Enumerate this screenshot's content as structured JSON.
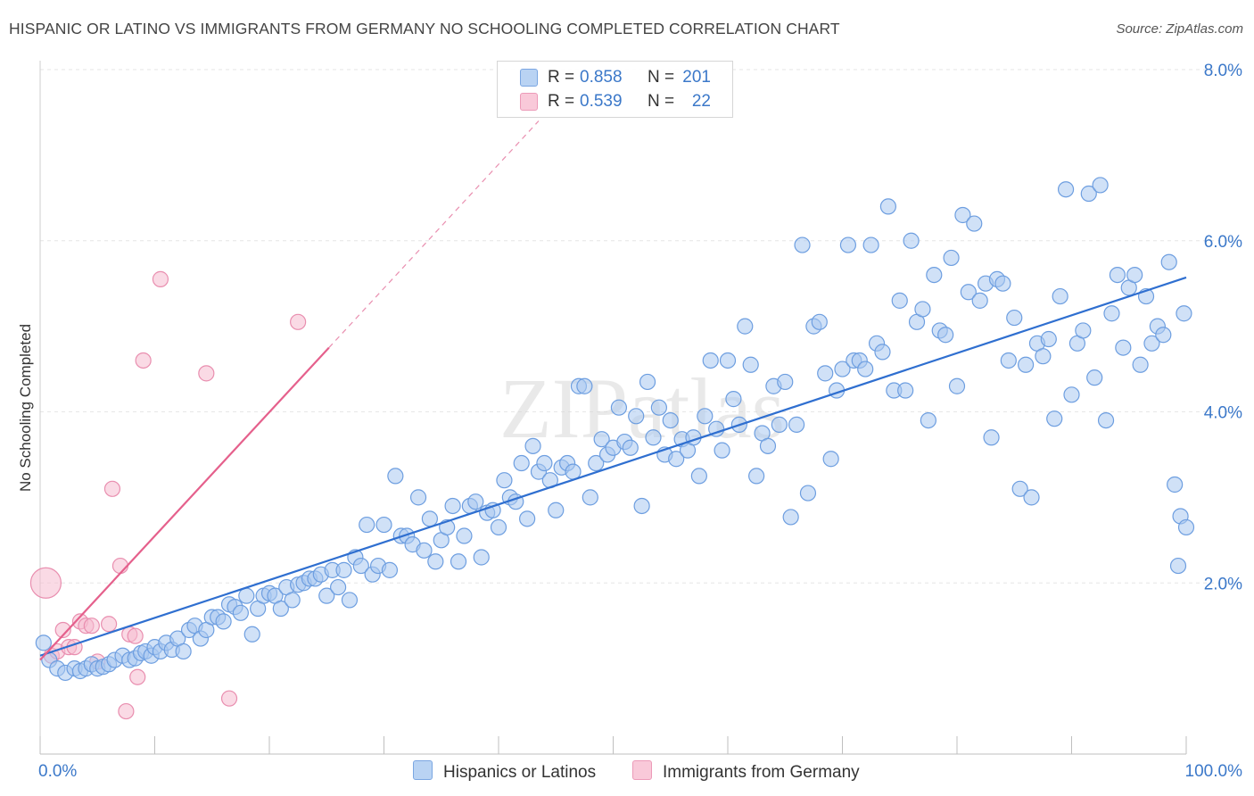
{
  "title": "HISPANIC OR LATINO VS IMMIGRANTS FROM GERMANY NO SCHOOLING COMPLETED CORRELATION CHART",
  "source": "Source: ZipAtlas.com",
  "watermark": "ZIPatlas",
  "colors": {
    "blue_fill": "#a9c8f0",
    "blue_stroke": "#6d9ee0",
    "blue_line": "#2f6fd0",
    "pink_fill": "#f6bcd0",
    "pink_stroke": "#e98eaf",
    "pink_line": "#e5608c",
    "axis_text": "#3b78c9",
    "grid": "#e6e6e6"
  },
  "legend": {
    "rows": [
      {
        "r_label": "R =",
        "r_value": "0.858",
        "n_label": "N =",
        "n_value": "201"
      },
      {
        "r_label": "R =",
        "r_value": "0.539",
        "n_label": "N =",
        "n_value": "22"
      }
    ]
  },
  "bottom_legend": [
    "Hispanics or Latinos",
    "Immigrants from Germany"
  ],
  "chart_data": {
    "type": "scatter",
    "title": "HISPANIC OR LATINO VS IMMIGRANTS FROM GERMANY NO SCHOOLING COMPLETED CORRELATION CHART",
    "xlabel": "",
    "ylabel": "No Schooling Completed",
    "xlim": [
      0,
      100
    ],
    "ylim": [
      0,
      8.0
    ],
    "x_tick_labels": [
      "0.0%",
      "100.0%"
    ],
    "y_ticks": [
      2.0,
      4.0,
      6.0,
      8.0
    ],
    "y_tick_labels": [
      "2.0%",
      "4.0%",
      "6.0%",
      "8.0%"
    ],
    "grid": true,
    "legend_position": "top-center",
    "series": [
      {
        "name": "Hispanics or Latinos",
        "color": "#a9c8f0",
        "trend": {
          "x": [
            0,
            100
          ],
          "y": [
            1.15,
            5.57
          ]
        },
        "points": [
          [
            0.3,
            1.3
          ],
          [
            0.8,
            1.1
          ],
          [
            1.5,
            1.0
          ],
          [
            2.2,
            0.95
          ],
          [
            3.0,
            1.0
          ],
          [
            3.5,
            0.97
          ],
          [
            4.0,
            1.0
          ],
          [
            4.5,
            1.05
          ],
          [
            5.0,
            1.0
          ],
          [
            5.5,
            1.02
          ],
          [
            6.0,
            1.05
          ],
          [
            6.5,
            1.1
          ],
          [
            7.2,
            1.15
          ],
          [
            7.8,
            1.1
          ],
          [
            8.3,
            1.12
          ],
          [
            8.8,
            1.18
          ],
          [
            9.2,
            1.2
          ],
          [
            9.7,
            1.15
          ],
          [
            10.0,
            1.25
          ],
          [
            10.5,
            1.2
          ],
          [
            11.0,
            1.3
          ],
          [
            11.5,
            1.22
          ],
          [
            12.0,
            1.35
          ],
          [
            12.5,
            1.2
          ],
          [
            13.0,
            1.45
          ],
          [
            13.5,
            1.5
          ],
          [
            14.0,
            1.35
          ],
          [
            14.5,
            1.45
          ],
          [
            15.0,
            1.6
          ],
          [
            15.5,
            1.6
          ],
          [
            16.0,
            1.55
          ],
          [
            16.5,
            1.75
          ],
          [
            17.0,
            1.72
          ],
          [
            17.5,
            1.65
          ],
          [
            18.0,
            1.85
          ],
          [
            18.5,
            1.4
          ],
          [
            19.0,
            1.7
          ],
          [
            19.5,
            1.85
          ],
          [
            20.0,
            1.88
          ],
          [
            20.5,
            1.85
          ],
          [
            21.0,
            1.7
          ],
          [
            21.5,
            1.95
          ],
          [
            22.0,
            1.8
          ],
          [
            22.5,
            1.98
          ],
          [
            23.0,
            2.0
          ],
          [
            23.5,
            2.05
          ],
          [
            24.0,
            2.05
          ],
          [
            24.5,
            2.1
          ],
          [
            25.0,
            1.85
          ],
          [
            25.5,
            2.15
          ],
          [
            26.0,
            1.95
          ],
          [
            26.5,
            2.15
          ],
          [
            27.0,
            1.8
          ],
          [
            27.5,
            2.3
          ],
          [
            28.0,
            2.2
          ],
          [
            28.5,
            2.68
          ],
          [
            29.0,
            2.1
          ],
          [
            29.5,
            2.2
          ],
          [
            30.0,
            2.68
          ],
          [
            30.5,
            2.15
          ],
          [
            31.0,
            3.25
          ],
          [
            31.5,
            2.55
          ],
          [
            32.0,
            2.55
          ],
          [
            32.5,
            2.45
          ],
          [
            33.0,
            3.0
          ],
          [
            33.5,
            2.38
          ],
          [
            34.0,
            2.75
          ],
          [
            34.5,
            2.25
          ],
          [
            35.0,
            2.5
          ],
          [
            35.5,
            2.65
          ],
          [
            36.0,
            2.9
          ],
          [
            36.5,
            2.25
          ],
          [
            37.0,
            2.55
          ],
          [
            37.5,
            2.9
          ],
          [
            38.0,
            2.95
          ],
          [
            38.5,
            2.3
          ],
          [
            39.0,
            2.82
          ],
          [
            39.5,
            2.85
          ],
          [
            40.0,
            2.65
          ],
          [
            40.5,
            3.2
          ],
          [
            41.0,
            3.0
          ],
          [
            41.5,
            2.95
          ],
          [
            42.0,
            3.4
          ],
          [
            42.5,
            2.75
          ],
          [
            43.0,
            3.6
          ],
          [
            43.5,
            3.3
          ],
          [
            44.0,
            3.4
          ],
          [
            44.5,
            3.2
          ],
          [
            45.0,
            2.85
          ],
          [
            45.5,
            3.35
          ],
          [
            46.0,
            3.4
          ],
          [
            46.5,
            3.3
          ],
          [
            47.0,
            4.3
          ],
          [
            47.5,
            4.3
          ],
          [
            48.0,
            3.0
          ],
          [
            48.5,
            3.4
          ],
          [
            49.0,
            3.68
          ],
          [
            49.5,
            3.5
          ],
          [
            50.0,
            3.58
          ],
          [
            50.5,
            4.05
          ],
          [
            51.0,
            3.65
          ],
          [
            51.5,
            3.58
          ],
          [
            52.0,
            3.95
          ],
          [
            52.5,
            2.9
          ],
          [
            53.0,
            4.35
          ],
          [
            53.5,
            3.7
          ],
          [
            54.0,
            4.05
          ],
          [
            54.5,
            3.5
          ],
          [
            55.0,
            3.9
          ],
          [
            55.5,
            3.45
          ],
          [
            56.0,
            3.68
          ],
          [
            56.5,
            3.55
          ],
          [
            57.0,
            3.7
          ],
          [
            57.5,
            3.25
          ],
          [
            58.0,
            3.95
          ],
          [
            58.5,
            4.6
          ],
          [
            59.0,
            3.8
          ],
          [
            59.5,
            3.55
          ],
          [
            60.0,
            4.6
          ],
          [
            60.5,
            4.15
          ],
          [
            61.0,
            3.85
          ],
          [
            61.5,
            5.0
          ],
          [
            62.0,
            4.55
          ],
          [
            62.5,
            3.25
          ],
          [
            63.0,
            3.75
          ],
          [
            63.5,
            3.6
          ],
          [
            64.0,
            4.3
          ],
          [
            64.5,
            3.85
          ],
          [
            65.0,
            4.35
          ],
          [
            65.5,
            2.77
          ],
          [
            66.0,
            3.85
          ],
          [
            66.5,
            5.95
          ],
          [
            67.0,
            3.05
          ],
          [
            67.5,
            5.0
          ],
          [
            68.0,
            5.05
          ],
          [
            68.5,
            4.45
          ],
          [
            69.0,
            3.45
          ],
          [
            69.5,
            4.25
          ],
          [
            70.0,
            4.5
          ],
          [
            70.5,
            5.95
          ],
          [
            71.0,
            4.6
          ],
          [
            71.5,
            4.6
          ],
          [
            72.0,
            4.5
          ],
          [
            72.5,
            5.95
          ],
          [
            73.0,
            4.8
          ],
          [
            73.5,
            4.7
          ],
          [
            74.0,
            6.4
          ],
          [
            74.5,
            4.25
          ],
          [
            75.0,
            5.3
          ],
          [
            75.5,
            4.25
          ],
          [
            76.0,
            6.0
          ],
          [
            76.5,
            5.05
          ],
          [
            77.0,
            5.2
          ],
          [
            77.5,
            3.9
          ],
          [
            78.0,
            5.6
          ],
          [
            78.5,
            4.95
          ],
          [
            79.0,
            4.9
          ],
          [
            79.5,
            5.8
          ],
          [
            80.0,
            4.3
          ],
          [
            80.5,
            6.3
          ],
          [
            81.0,
            5.4
          ],
          [
            81.5,
            6.2
          ],
          [
            82.0,
            5.3
          ],
          [
            82.5,
            5.5
          ],
          [
            83.0,
            3.7
          ],
          [
            83.5,
            5.55
          ],
          [
            84.0,
            5.5
          ],
          [
            84.5,
            4.6
          ],
          [
            85.0,
            5.1
          ],
          [
            85.5,
            3.1
          ],
          [
            86.0,
            4.55
          ],
          [
            86.5,
            3.0
          ],
          [
            87.0,
            4.8
          ],
          [
            87.5,
            4.65
          ],
          [
            88.0,
            4.85
          ],
          [
            88.5,
            3.92
          ],
          [
            89.0,
            5.35
          ],
          [
            89.5,
            6.6
          ],
          [
            90.0,
            4.2
          ],
          [
            90.5,
            4.8
          ],
          [
            91.0,
            4.95
          ],
          [
            91.5,
            6.55
          ],
          [
            92.0,
            4.4
          ],
          [
            92.5,
            6.65
          ],
          [
            93.0,
            3.9
          ],
          [
            93.5,
            5.15
          ],
          [
            94.0,
            5.6
          ],
          [
            94.5,
            4.75
          ],
          [
            95.0,
            5.45
          ],
          [
            95.5,
            5.6
          ],
          [
            96.0,
            4.55
          ],
          [
            96.5,
            5.35
          ],
          [
            97.0,
            4.8
          ],
          [
            97.5,
            5.0
          ],
          [
            98.0,
            4.9
          ],
          [
            98.5,
            5.75
          ],
          [
            99.0,
            3.15
          ],
          [
            99.5,
            2.78
          ],
          [
            100.0,
            2.65
          ],
          [
            99.8,
            5.15
          ],
          [
            99.3,
            2.2
          ]
        ]
      },
      {
        "name": "Immigrants from Germany",
        "color": "#f6bcd0",
        "trend": {
          "x": [
            0,
            25.2
          ],
          "y": [
            1.1,
            4.75
          ],
          "dashed_to": {
            "x": 43.5,
            "y": 7.4
          }
        },
        "points": [
          [
            0.5,
            2.0
          ],
          [
            1.0,
            1.15
          ],
          [
            1.5,
            1.2
          ],
          [
            2.0,
            1.45
          ],
          [
            2.5,
            1.25
          ],
          [
            3.0,
            1.25
          ],
          [
            3.5,
            1.55
          ],
          [
            4.0,
            1.5
          ],
          [
            4.5,
            1.5
          ],
          [
            5.0,
            1.08
          ],
          [
            6.0,
            1.52
          ],
          [
            6.3,
            3.1
          ],
          [
            7.0,
            2.2
          ],
          [
            7.5,
            0.5
          ],
          [
            7.8,
            1.4
          ],
          [
            8.3,
            1.38
          ],
          [
            8.5,
            0.9
          ],
          [
            9.0,
            4.6
          ],
          [
            10.5,
            5.55
          ],
          [
            14.5,
            4.45
          ],
          [
            16.5,
            0.65
          ],
          [
            22.5,
            5.05
          ]
        ]
      }
    ]
  }
}
